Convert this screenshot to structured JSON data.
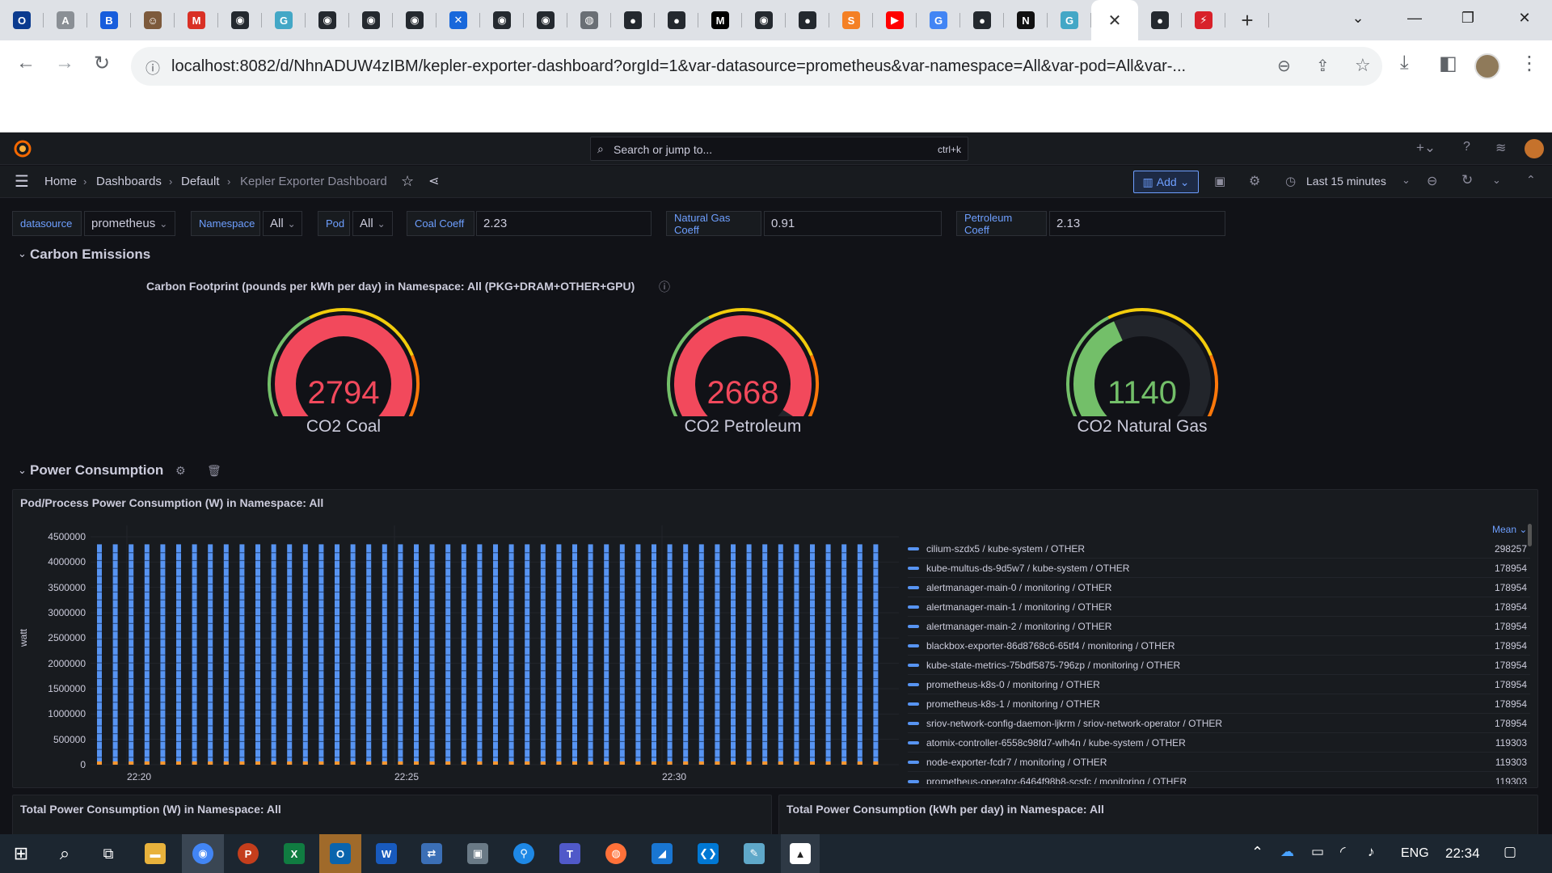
{
  "browser": {
    "tabs": [
      {
        "icon": "opera-icon",
        "color": "#0b3b8f",
        "glyph": "O"
      },
      {
        "icon": "ama-icon",
        "color": "#8a8f95",
        "glyph": "A"
      },
      {
        "icon": "bitwarden-icon",
        "color": "#175ddc",
        "glyph": "B"
      },
      {
        "icon": "avatar-icon",
        "color": "#7d5a3c",
        "glyph": "☺"
      },
      {
        "icon": "gmail-icon",
        "color": "#d93025",
        "glyph": "M"
      },
      {
        "icon": "github-icon",
        "color": "#24292f",
        "glyph": "◉"
      },
      {
        "icon": "gopher-icon",
        "color": "#43a7c6",
        "glyph": "G"
      },
      {
        "icon": "github-icon",
        "color": "#24292f",
        "glyph": "◉"
      },
      {
        "icon": "github-icon",
        "color": "#24292f",
        "glyph": "◉"
      },
      {
        "icon": "github-icon",
        "color": "#24292f",
        "glyph": "◉"
      },
      {
        "icon": "confluence-icon",
        "color": "#1868db",
        "glyph": "✕"
      },
      {
        "icon": "github-icon",
        "color": "#24292f",
        "glyph": "◉"
      },
      {
        "icon": "github-icon",
        "color": "#24292f",
        "glyph": "◉"
      },
      {
        "icon": "globe-icon",
        "color": "#6a6f75",
        "glyph": "◍"
      },
      {
        "icon": "site-icon",
        "color": "#24292f",
        "glyph": "●"
      },
      {
        "icon": "site-icon",
        "color": "#24292f",
        "glyph": "●"
      },
      {
        "icon": "medium-icon",
        "color": "#000000",
        "glyph": "M"
      },
      {
        "icon": "github-icon",
        "color": "#24292f",
        "glyph": "◉"
      },
      {
        "icon": "site-icon",
        "color": "#24292f",
        "glyph": "●"
      },
      {
        "icon": "stackoverflow-icon",
        "color": "#f48024",
        "glyph": "S"
      },
      {
        "icon": "youtube-icon",
        "color": "#ff0000",
        "glyph": "▶"
      },
      {
        "icon": "google-icon",
        "color": "#4285f4",
        "glyph": "G"
      },
      {
        "icon": "site-icon",
        "color": "#24292f",
        "glyph": "●"
      },
      {
        "icon": "notion-icon",
        "color": "#111111",
        "glyph": "N"
      },
      {
        "icon": "gopher-icon",
        "color": "#43a7c6",
        "glyph": "G"
      }
    ],
    "active_tab_glyph": "✕",
    "after_tabs": [
      {
        "icon": "site-icon",
        "color": "#24292f",
        "glyph": "●"
      },
      {
        "icon": "pdf-icon",
        "color": "#d8212a",
        "glyph": "⚡"
      }
    ],
    "new_tab": "+",
    "url": "localhost:8082/d/NhnADUW4zIBM/kepler-exporter-dashboard?orgId=1&var-datasource=prometheus&var-namespace=All&var-pod=All&var-..."
  },
  "grafana": {
    "search_placeholder": "Search or jump to...",
    "search_shortcut": "ctrl+k",
    "breadcrumb": [
      "Home",
      "Dashboards",
      "Default",
      "Kepler Exporter Dashboard"
    ],
    "add_label": "Add",
    "time_range": "Last 15 minutes",
    "variables": {
      "datasource_label": "datasource",
      "datasource_value": "prometheus",
      "namespace_label": "Namespace",
      "namespace_value": "All",
      "pod_label": "Pod",
      "pod_value": "All",
      "coal_label": "Coal Coeff",
      "coal_value": "2.23",
      "gas_label": "Natural Gas Coeff",
      "gas_value": "0.91",
      "petroleum_label": "Petroleum Coeff",
      "petroleum_value": "2.13"
    },
    "rows": {
      "carbon": "Carbon Emissions",
      "power": "Power Consumption"
    },
    "carbon_panel_title": "Carbon Footprint (pounds per kWh per day) in Namespace: All (PKG+DRAM+OTHER+GPU)",
    "gauges": [
      {
        "value": "2794",
        "label": "CO2 Coal",
        "fraction": 1.0,
        "color": "#f2495c"
      },
      {
        "value": "2668",
        "label": "CO2 Petroleum",
        "fraction": 0.955,
        "color": "#f2495c"
      },
      {
        "value": "1140",
        "label": "CO2 Natural Gas",
        "fraction": 0.41,
        "color": "#73bf69"
      }
    ],
    "power_panel_title": "Pod/Process Power Consumption (W) in Namespace: All",
    "legend_header": "Mean",
    "legend": [
      {
        "name": "cilium-szdx5 / kube-system / OTHER",
        "value": "298257"
      },
      {
        "name": "kube-multus-ds-9d5w7 / kube-system / OTHER",
        "value": "178954"
      },
      {
        "name": "alertmanager-main-0 / monitoring / OTHER",
        "value": "178954"
      },
      {
        "name": "alertmanager-main-1 / monitoring / OTHER",
        "value": "178954"
      },
      {
        "name": "alertmanager-main-2 / monitoring / OTHER",
        "value": "178954"
      },
      {
        "name": "blackbox-exporter-86d8768c6-65tf4 / monitoring / OTHER",
        "value": "178954"
      },
      {
        "name": "kube-state-metrics-75bdf5875-796zp / monitoring / OTHER",
        "value": "178954"
      },
      {
        "name": "prometheus-k8s-0 / monitoring / OTHER",
        "value": "178954"
      },
      {
        "name": "prometheus-k8s-1 / monitoring / OTHER",
        "value": "178954"
      },
      {
        "name": "sriov-network-config-daemon-ljkrm / sriov-network-operator / OTHER",
        "value": "178954"
      },
      {
        "name": "atomix-controller-6558c98fd7-wlh4n / kube-system / OTHER",
        "value": "119303"
      },
      {
        "name": "node-exporter-fcdr7 / monitoring / OTHER",
        "value": "119303"
      },
      {
        "name": "prometheus-operator-6464f98b8-scsfc / monitoring / OTHER",
        "value": "119303"
      }
    ],
    "total_power_w_title": "Total Power Consumption (W) in Namespace: All",
    "total_power_kwh_title": "Total Power Consumption (kWh per day) in Namespace: All"
  },
  "chart_data": {
    "type": "bar",
    "title": "Pod/Process Power Consumption (W) in Namespace: All",
    "ylabel": "watt",
    "ylim": [
      0,
      4500000
    ],
    "yticks": [
      "4500000",
      "4000000",
      "3500000",
      "3000000",
      "2500000",
      "2000000",
      "1500000",
      "1000000",
      "500000",
      "0"
    ],
    "xticks": [
      "22:20",
      "22:25",
      "22:30"
    ],
    "stack_total": 4350000,
    "bar_count": 50
  },
  "taskbar": {
    "lang": "ENG",
    "time": "22:34"
  }
}
